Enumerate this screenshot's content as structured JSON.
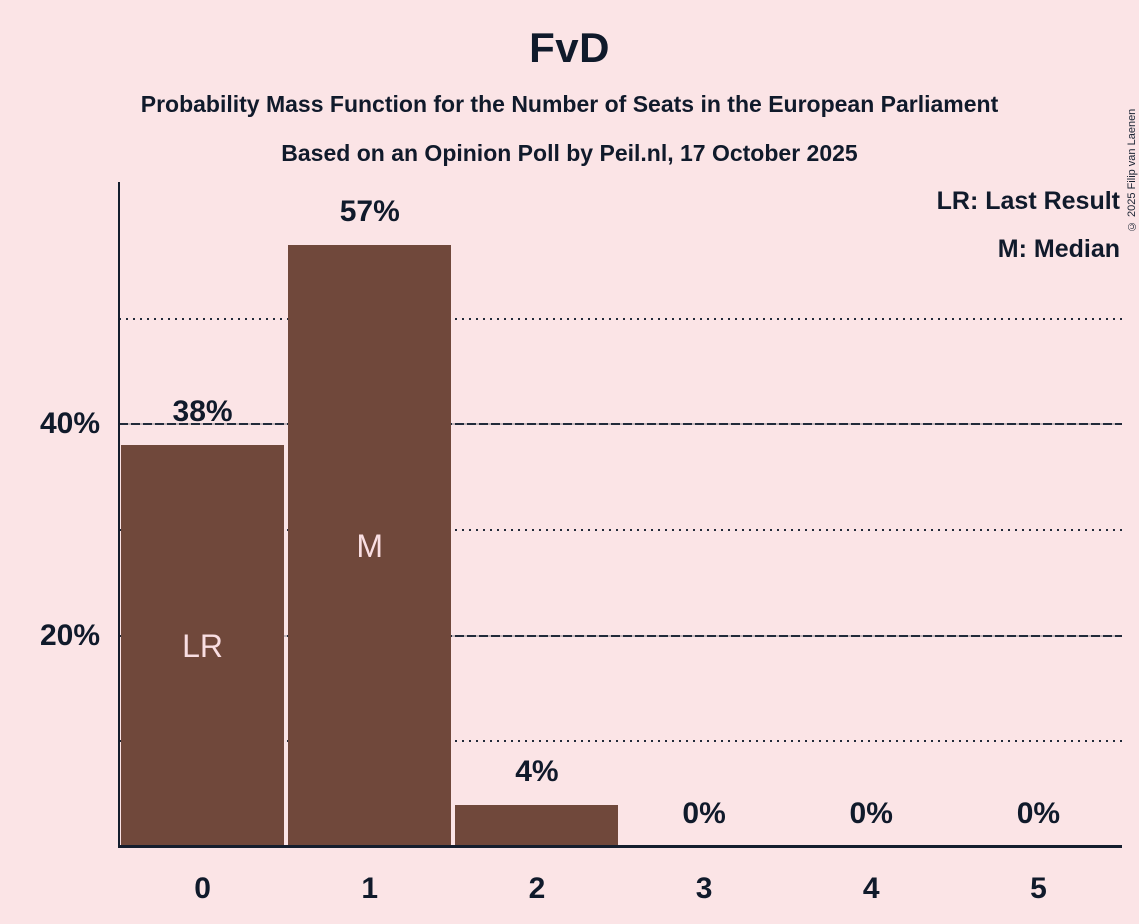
{
  "header": {
    "title": "FvD",
    "subtitle1": "Probability Mass Function for the Number of Seats in the European Parliament",
    "subtitle2": "Based on an Opinion Poll by Peil.nl, 17 October 2025"
  },
  "legend": {
    "lr": "LR: Last Result",
    "m": "M: Median"
  },
  "copyright": "© 2025 Filip van Laenen",
  "colors": {
    "background": "#fbe4e6",
    "bar": "#70483b",
    "text_dark": "#101a2b",
    "text_on_bar": "#f9dee2",
    "axis": "#141e2e",
    "gridline": "#222b3a"
  },
  "chart_data": {
    "type": "bar",
    "title": "FvD",
    "categories": [
      "0",
      "1",
      "2",
      "3",
      "4",
      "5"
    ],
    "values": [
      38,
      57,
      4,
      0,
      0,
      0
    ],
    "value_labels": [
      "38%",
      "57%",
      "4%",
      "0%",
      "0%",
      "0%"
    ],
    "bar_annotations": [
      "LR",
      "M",
      "",
      "",
      "",
      ""
    ],
    "annotation_meanings": {
      "LR": "Last Result",
      "M": "Median"
    },
    "ylim": [
      0,
      63
    ],
    "y_tick_labels": [
      {
        "value": 20,
        "label": "20%"
      },
      {
        "value": 40,
        "label": "40%"
      }
    ],
    "gridlines": [
      {
        "value": 10,
        "style": "dotted"
      },
      {
        "value": 20,
        "style": "dashed"
      },
      {
        "value": 30,
        "style": "dotted"
      },
      {
        "value": 40,
        "style": "dashed"
      },
      {
        "value": 50,
        "style": "dotted"
      }
    ],
    "grid": true,
    "legend_position": "top-right"
  }
}
